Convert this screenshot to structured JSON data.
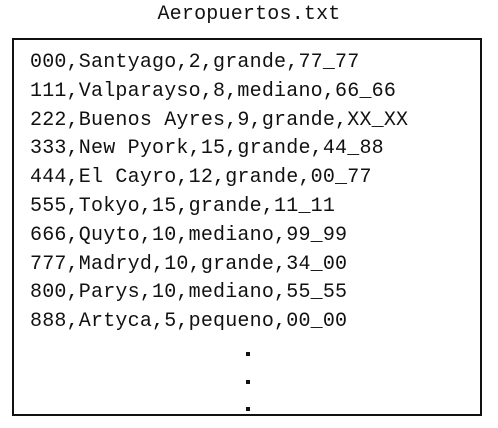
{
  "file": {
    "title": "Aeropuertos.txt",
    "lines": [
      "000,Santyago,2,grande,77_77",
      "111,Valparayso,8,mediano,66_66",
      "222,Buenos Ayres,9,grande,XX_XX",
      "333,New Pyork,15,grande,44_88",
      "444,El Cayro,12,grande,00_77",
      "555,Tokyo,15,grande,11_11",
      "666,Quyto,10,mediano,99_99",
      "777,Madryd,10,grande,34_00",
      "800,Parys,10,mediano,55_55",
      "888,Artyca,5,pequeno,00_00"
    ]
  }
}
